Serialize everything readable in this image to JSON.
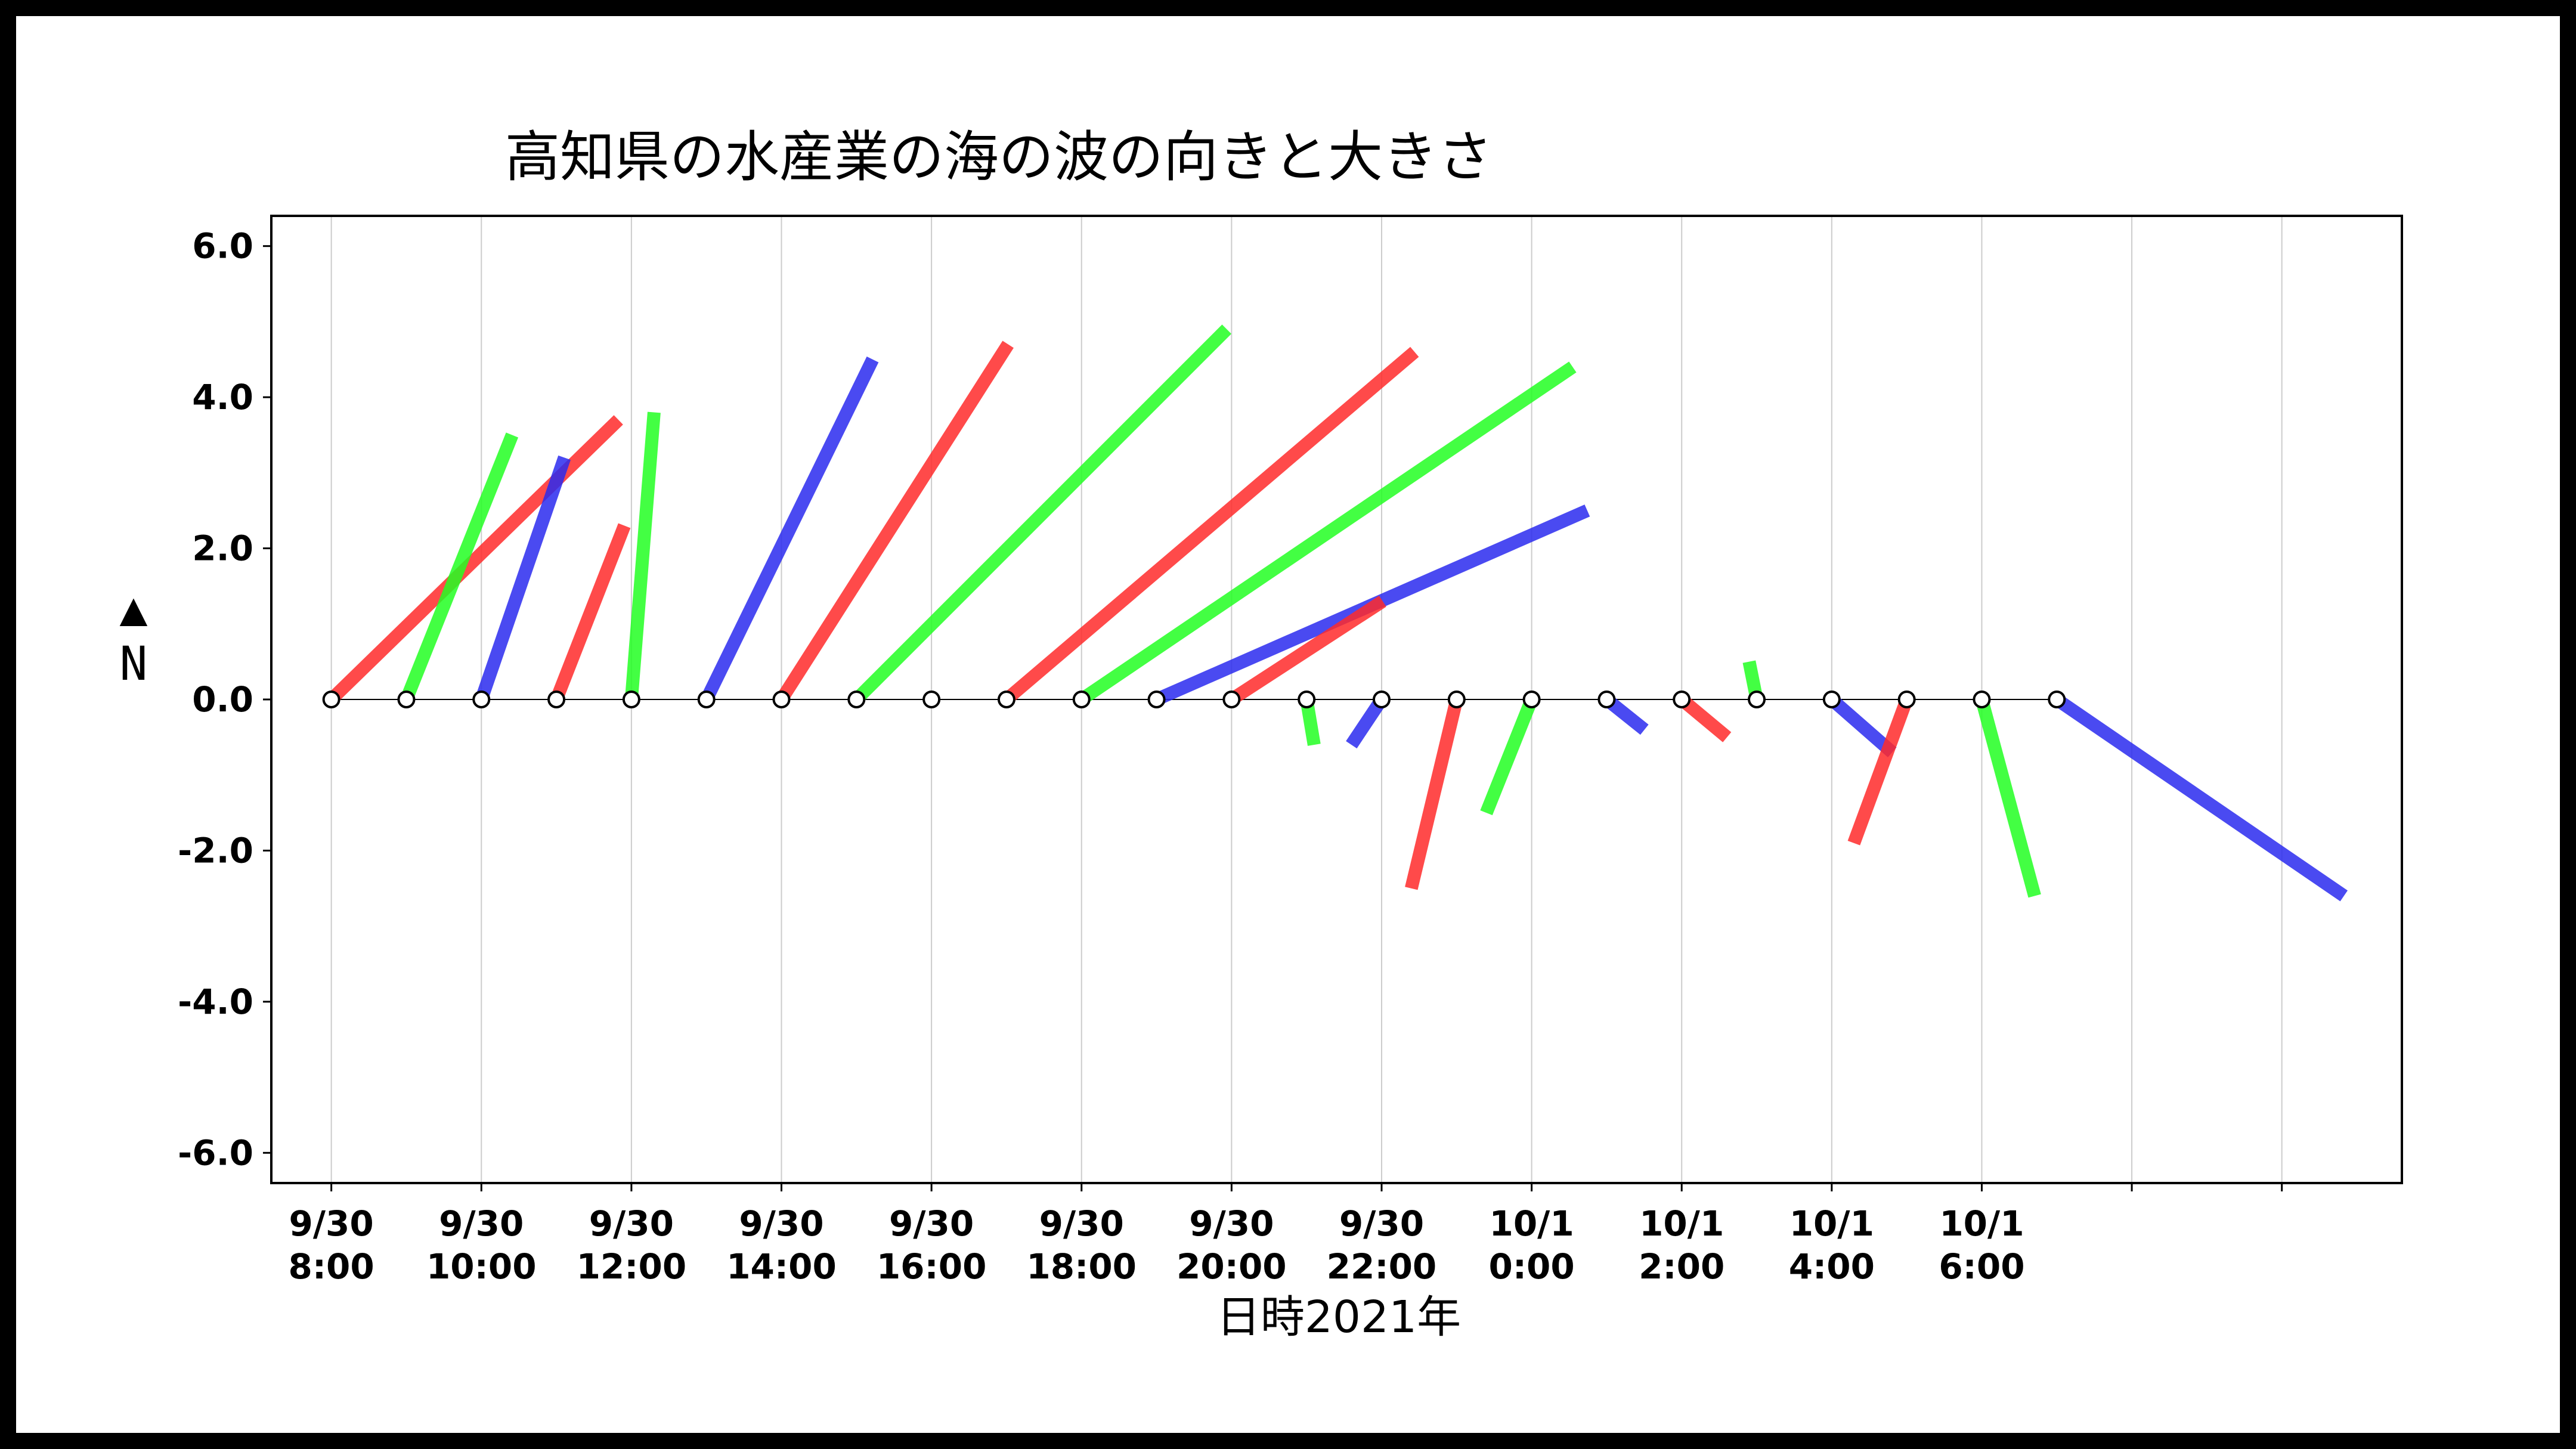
{
  "chart_data": {
    "type": "vector",
    "title": "高知県の水産業の海の波の向きと大きさ",
    "xlabel": "日時2021年",
    "ylabel": "N",
    "ylabel_marker": "▲",
    "ylim": [
      -6.4,
      6.4
    ],
    "yticks": [
      6.0,
      4.0,
      2.0,
      0.0,
      -2.0,
      -4.0,
      -6.0
    ],
    "ytick_labels": [
      "6.0",
      "4.0",
      "2.0",
      "0.0",
      "-2.0",
      "-4.0",
      "-6.0"
    ],
    "xlim_hours": [
      -0.8,
      27.6
    ],
    "xticks": [
      {
        "hours": 0,
        "line1": "9/30",
        "line2": "8:00"
      },
      {
        "hours": 2,
        "line1": "9/30",
        "line2": "10:00"
      },
      {
        "hours": 4,
        "line1": "9/30",
        "line2": "12:00"
      },
      {
        "hours": 6,
        "line1": "9/30",
        "line2": "14:00"
      },
      {
        "hours": 8,
        "line1": "9/30",
        "line2": "16:00"
      },
      {
        "hours": 10,
        "line1": "9/30",
        "line2": "18:00"
      },
      {
        "hours": 12,
        "line1": "9/30",
        "line2": "20:00"
      },
      {
        "hours": 14,
        "line1": "9/30",
        "line2": "22:00"
      },
      {
        "hours": 16,
        "line1": "10/1",
        "line2": "0:00"
      },
      {
        "hours": 18,
        "line1": "10/1",
        "line2": "2:00"
      },
      {
        "hours": 20,
        "line1": "10/1",
        "line2": "4:00"
      },
      {
        "hours": 22,
        "line1": "10/1",
        "line2": "6:00"
      },
      {
        "hours": 24,
        "line1": "",
        "line2": ""
      },
      {
        "hours": 26,
        "line1": "",
        "line2": ""
      }
    ],
    "grid": "vertical",
    "colors": [
      "#ff2a2a",
      "#22ff22",
      "#2a2aee"
    ],
    "vectors": [
      {
        "t": 0,
        "u": 3.8,
        "v": 3.7,
        "color": 0
      },
      {
        "t": 1,
        "u": 1.4,
        "v": 3.5,
        "color": 1
      },
      {
        "t": 2,
        "u": 1.1,
        "v": 3.2,
        "color": 2
      },
      {
        "t": 3,
        "u": 0.9,
        "v": 2.3,
        "color": 0
      },
      {
        "t": 4,
        "u": 0.3,
        "v": 3.8,
        "color": 1
      },
      {
        "t": 5,
        "u": 2.2,
        "v": 4.5,
        "color": 2
      },
      {
        "t": 6,
        "u": 3.0,
        "v": 4.7,
        "color": 0
      },
      {
        "t": 7,
        "u": 4.9,
        "v": 4.9,
        "color": 1
      },
      {
        "t": 8,
        "u": 0.0,
        "v": 0.0,
        "color": 2
      },
      {
        "t": 9,
        "u": 5.4,
        "v": 4.6,
        "color": 0
      },
      {
        "t": 10,
        "u": 6.5,
        "v": 4.4,
        "color": 1
      },
      {
        "t": 11,
        "u": 5.7,
        "v": 2.5,
        "color": 2
      },
      {
        "t": 12,
        "u": 2.0,
        "v": 1.3,
        "color": 0
      },
      {
        "t": 13,
        "u": 0.1,
        "v": -0.6,
        "color": 1
      },
      {
        "t": 14,
        "u": -0.4,
        "v": -0.6,
        "color": 2
      },
      {
        "t": 15,
        "u": -0.6,
        "v": -2.5,
        "color": 0
      },
      {
        "t": 16,
        "u": -0.6,
        "v": -1.5,
        "color": 1
      },
      {
        "t": 17,
        "u": 0.5,
        "v": -0.4,
        "color": 2
      },
      {
        "t": 18,
        "u": 0.6,
        "v": -0.5,
        "color": 0
      },
      {
        "t": 19,
        "u": -0.1,
        "v": 0.5,
        "color": 1
      },
      {
        "t": 20,
        "u": 0.8,
        "v": -0.7,
        "color": 2
      },
      {
        "t": 21,
        "u": -0.7,
        "v": -1.9,
        "color": 0
      },
      {
        "t": 22,
        "u": 0.7,
        "v": -2.6,
        "color": 1
      },
      {
        "t": 23,
        "u": 3.8,
        "v": -2.6,
        "color": 2
      }
    ]
  }
}
